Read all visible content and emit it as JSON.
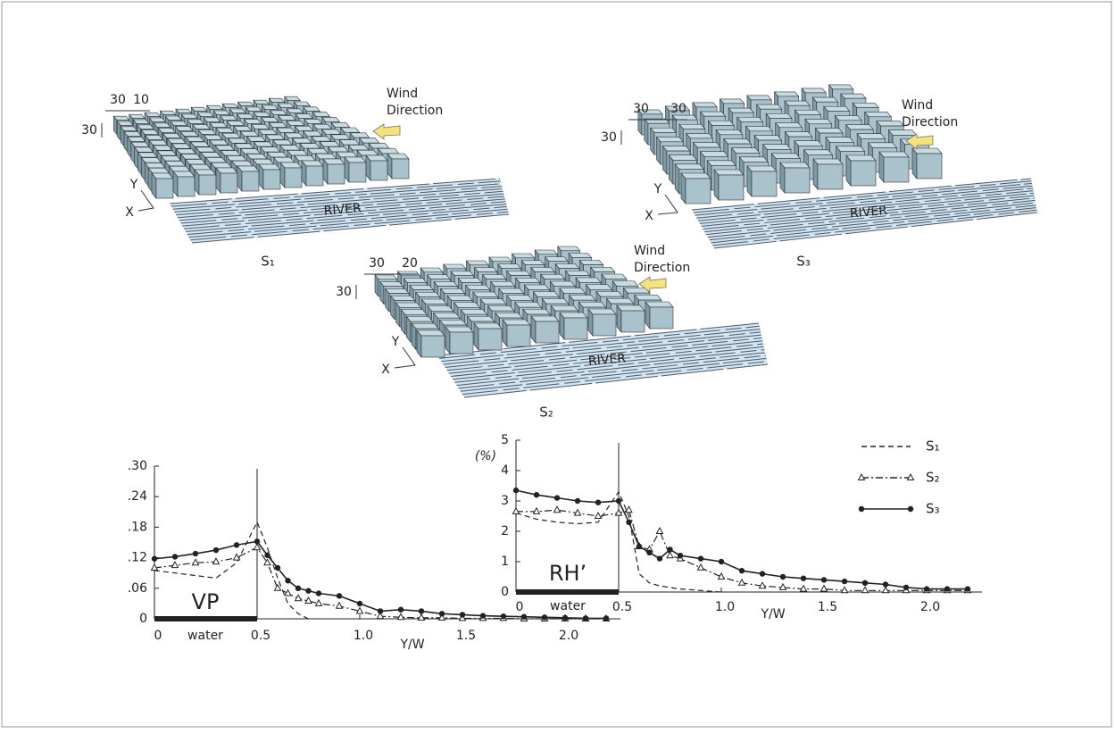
{
  "diagrams": [
    {
      "label": "S₁",
      "spacing": "30",
      "gap": "10",
      "height": "30",
      "wind": [
        "Wind",
        "Direction"
      ],
      "river": "RIVER",
      "axis_x": "X",
      "axis_y": "Y"
    },
    {
      "label": "S₂",
      "spacing": "30",
      "gap": "20",
      "height": "30",
      "wind": [
        "Wind",
        "Direction"
      ],
      "river": "RIVER",
      "axis_x": "X",
      "axis_y": "Y"
    },
    {
      "label": "S₃",
      "spacing": "30",
      "gap": "30",
      "height": "30",
      "wind": [
        "Wind",
        "Direction"
      ],
      "river": "RIVER",
      "axis_x": "X",
      "axis_y": "Y"
    }
  ],
  "chart_data": [
    {
      "type": "line",
      "annotation": "VP",
      "water_label": "water",
      "xlabel": "Y/W",
      "xlim": [
        0,
        2.27
      ],
      "ylim": [
        0,
        0.3
      ],
      "xticks": [
        0,
        0.5,
        {
          "value": 1,
          "label": "1.0"
        },
        1.5,
        {
          "value": 2,
          "label": "2.0"
        }
      ],
      "yticks": [
        0,
        {
          "value": 0.06,
          "label": ".06"
        },
        {
          "value": 0.12,
          "label": ".12"
        },
        {
          "value": 0.18,
          "label": ".18"
        },
        {
          "value": 0.24,
          "label": ".24"
        },
        {
          "value": 0.3,
          "label": ".30"
        }
      ],
      "water_extent": [
        0,
        0.5
      ],
      "x": [
        0,
        0.1,
        0.2,
        0.3,
        0.4,
        0.5,
        0.55,
        0.6,
        0.65,
        0.7,
        0.75,
        0.8,
        0.9,
        1.0,
        1.1,
        1.2,
        1.3,
        1.4,
        1.5,
        1.6,
        1.7,
        1.8,
        1.9,
        2.0,
        2.1,
        2.2
      ],
      "series": [
        {
          "color": "#222222",
          "dash": "dashed",
          "marker": "none",
          "values": [
            0.095,
            0.09,
            0.085,
            0.08,
            0.11,
            0.19,
            0.14,
            0.08,
            0.03,
            0.01,
            0,
            null,
            null,
            null,
            null,
            null,
            null,
            null,
            null,
            null,
            null,
            null,
            null,
            null,
            null,
            null
          ]
        },
        {
          "color": "#222222",
          "dash": "dashdot",
          "marker": "triangle",
          "values": [
            0.1,
            0.105,
            0.11,
            0.112,
            0.12,
            0.14,
            0.11,
            0.06,
            0.05,
            0.04,
            0.035,
            0.03,
            0.025,
            0.015,
            0.005,
            0.003,
            0.002,
            0.002,
            0.001,
            0.001,
            0.001,
            0,
            0,
            0,
            0,
            0
          ]
        },
        {
          "color": "#222222",
          "dash": "solid",
          "marker": "circle",
          "values": [
            0.118,
            0.122,
            0.128,
            0.135,
            0.145,
            0.152,
            0.125,
            0.1,
            0.075,
            0.06,
            0.055,
            0.05,
            0.045,
            0.03,
            0.015,
            0.018,
            0.015,
            0.01,
            0.008,
            0.006,
            0.005,
            0.004,
            0.003,
            0.002,
            0.001,
            0.001
          ]
        }
      ]
    },
    {
      "type": "line",
      "annotation": "RH’",
      "water_label": "water",
      "xlabel": "Y/W",
      "ylabel": "(%)",
      "legend": "upper right",
      "xlim": [
        0,
        2.27
      ],
      "ylim": [
        0,
        5
      ],
      "xticks": [
        0,
        0.5,
        {
          "value": 1,
          "label": "1.0"
        },
        1.5,
        {
          "value": 2,
          "label": "2.0"
        }
      ],
      "yticks": [
        0,
        1,
        2,
        3,
        4,
        5
      ],
      "water_extent": [
        0,
        0.5
      ],
      "x": [
        0,
        0.1,
        0.2,
        0.3,
        0.4,
        0.5,
        0.55,
        0.6,
        0.65,
        0.7,
        0.75,
        0.8,
        0.9,
        1.0,
        1.1,
        1.2,
        1.3,
        1.4,
        1.5,
        1.6,
        1.7,
        1.8,
        1.9,
        2.0,
        2.1,
        2.2
      ],
      "series": [
        {
          "name": "S₁",
          "color": "#222222",
          "dash": "dashed",
          "marker": "none",
          "values": [
            2.6,
            2.4,
            2.3,
            2.25,
            2.3,
            3.3,
            2.5,
            0.6,
            0.3,
            0.2,
            0.15,
            0.1,
            0.05,
            0,
            null,
            null,
            null,
            null,
            null,
            null,
            null,
            null,
            null,
            null,
            null,
            null
          ]
        },
        {
          "name": "S₂",
          "color": "#222222",
          "dash": "dashdot",
          "marker": "triangle",
          "values": [
            2.65,
            2.65,
            2.7,
            2.6,
            2.5,
            2.6,
            2.7,
            1.5,
            1.4,
            2.0,
            1.2,
            1.1,
            0.8,
            0.5,
            0.3,
            0.2,
            0.15,
            0.1,
            0.1,
            0.05,
            0.05,
            0.05,
            0.05,
            0.05,
            0.05,
            0.05
          ]
        },
        {
          "name": "S₃",
          "color": "#222222",
          "dash": "solid",
          "marker": "circle",
          "values": [
            3.35,
            3.2,
            3.1,
            3.0,
            2.95,
            3.0,
            2.3,
            1.5,
            1.3,
            1.1,
            1.4,
            1.2,
            1.1,
            1.0,
            0.7,
            0.6,
            0.5,
            0.45,
            0.4,
            0.35,
            0.3,
            0.25,
            0.15,
            0.1,
            0.1,
            0.1
          ]
        }
      ]
    }
  ]
}
